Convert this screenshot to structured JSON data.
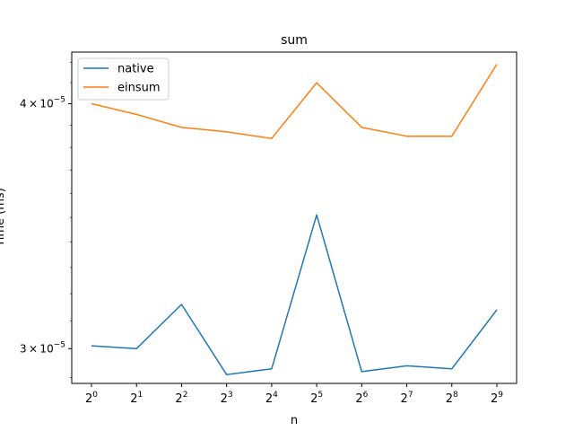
{
  "chart_data": {
    "type": "line",
    "title": "sum",
    "xlabel": "n",
    "ylabel": "Time (ms)",
    "yscale": "log",
    "ylim": [
      2.88e-05,
      4.25e-05
    ],
    "x": [
      0,
      1,
      2,
      3,
      4,
      5,
      6,
      7,
      8,
      9
    ],
    "x_tick_bases": [
      "2",
      "2",
      "2",
      "2",
      "2",
      "2",
      "2",
      "2",
      "2",
      "2"
    ],
    "x_tick_exponents": [
      "0",
      "1",
      "2",
      "3",
      "4",
      "5",
      "6",
      "7",
      "8",
      "9"
    ],
    "y_ticks": [
      {
        "value": 3e-05,
        "mantissa": "3",
        "times": "×",
        "base": "10",
        "exponent": "−5"
      },
      {
        "value": 4e-05,
        "mantissa": "4",
        "times": "×",
        "base": "10",
        "exponent": "−5"
      }
    ],
    "legend_position": "upper-left",
    "series": [
      {
        "name": "native",
        "color": "#1f77b4",
        "values": [
          3.01e-05,
          3e-05,
          3.16e-05,
          2.91e-05,
          2.93e-05,
          3.51e-05,
          2.92e-05,
          2.94e-05,
          2.93e-05,
          3.14e-05
        ]
      },
      {
        "name": "einsum",
        "color": "#ff7f0e",
        "values": [
          4e-05,
          3.95e-05,
          3.89e-05,
          3.87e-05,
          3.84e-05,
          4.1e-05,
          3.89e-05,
          3.85e-05,
          3.85e-05,
          4.19e-05
        ]
      }
    ]
  }
}
